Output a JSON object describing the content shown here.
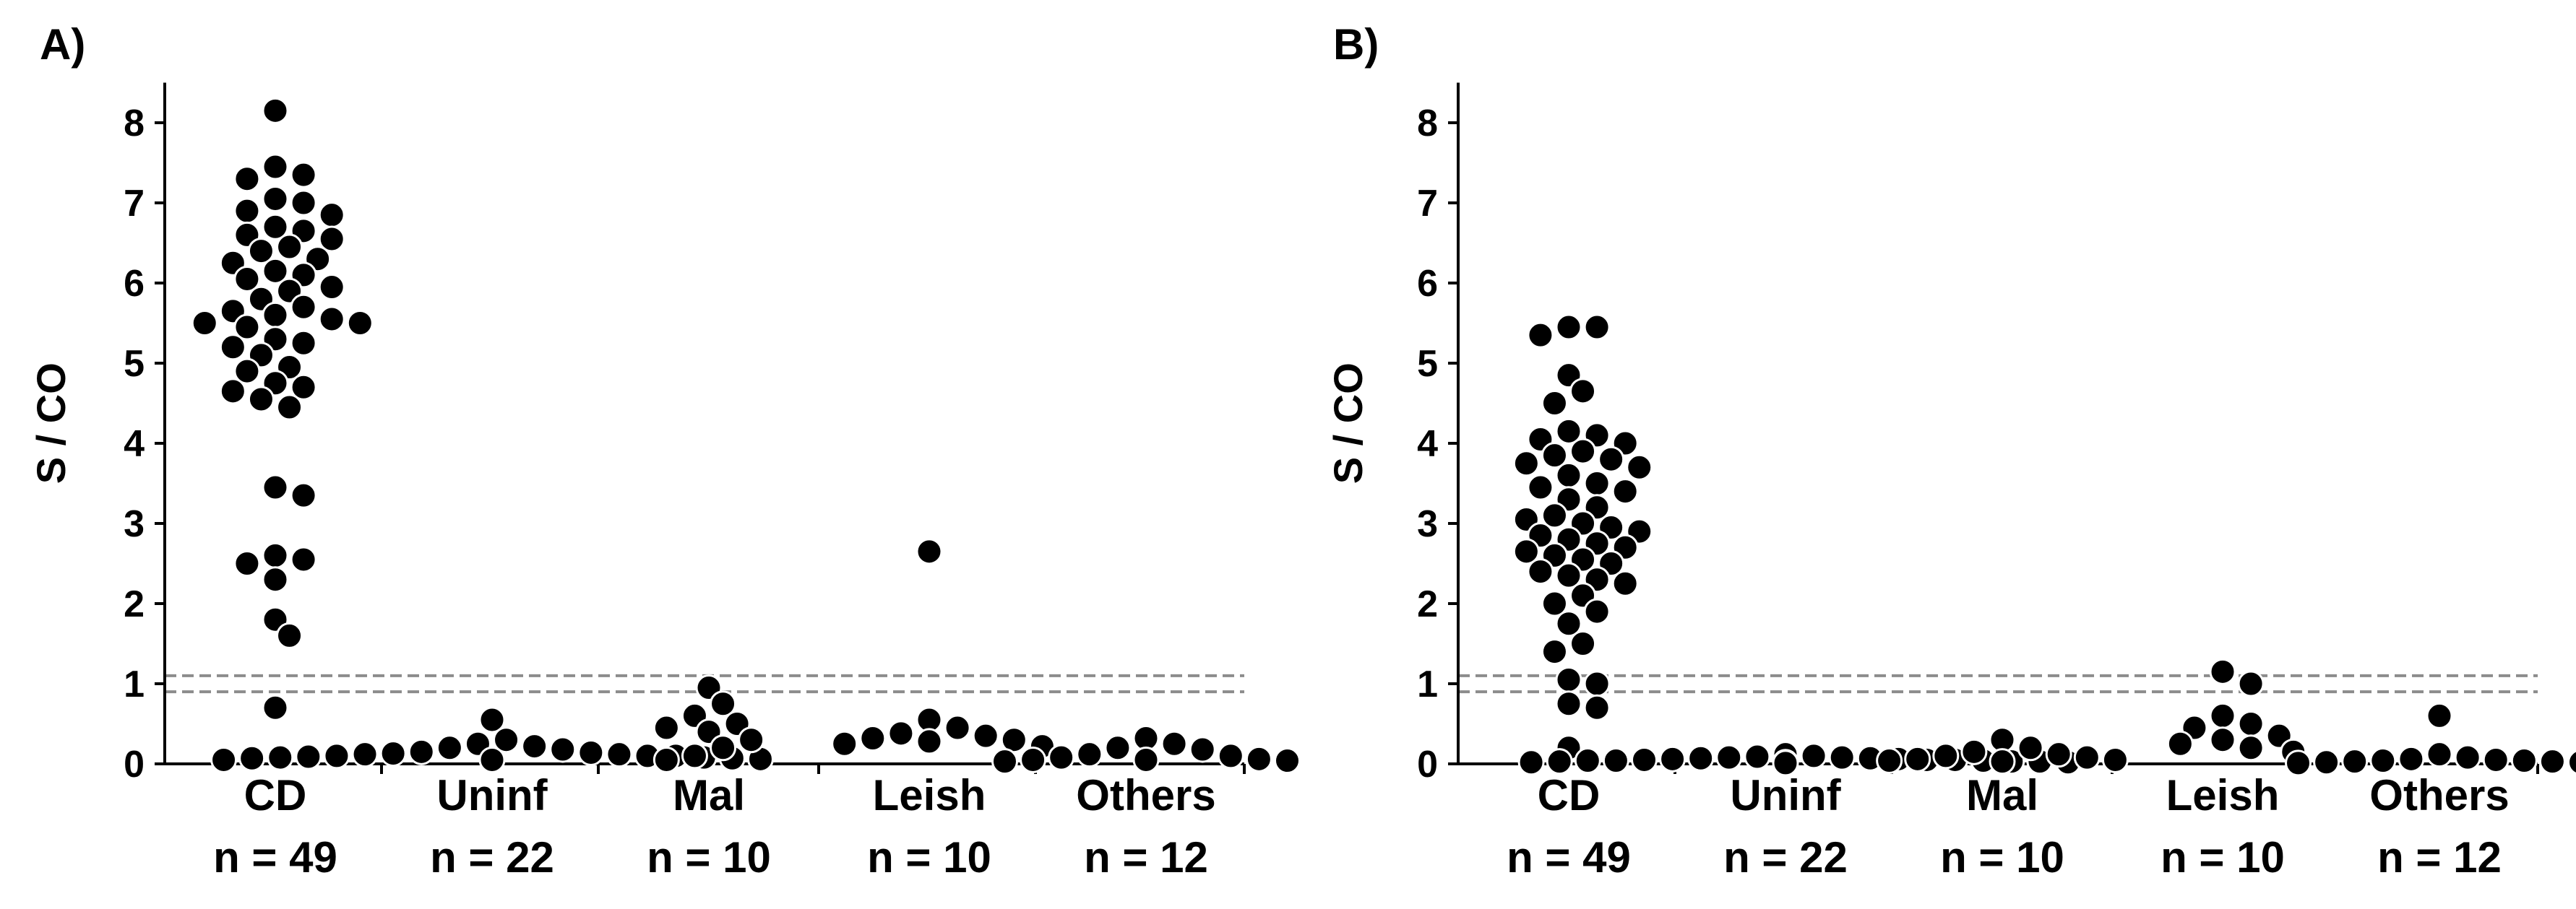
{
  "chart_data": [
    {
      "type": "scatter",
      "panel_label": "A)",
      "ylabel": "S / CO",
      "ylim": [
        0,
        8.5
      ],
      "yticks": [
        "0",
        "1",
        "2",
        "3",
        "4",
        "5",
        "6",
        "7",
        "8"
      ],
      "cutoff_lines": [
        0.9,
        1.1
      ],
      "categories": [
        {
          "name": "CD",
          "n_label": "n = 49",
          "values": [
            8.15,
            7.45,
            7.35,
            7.3,
            7.05,
            7.0,
            6.9,
            6.85,
            6.7,
            6.65,
            6.6,
            6.55,
            6.45,
            6.4,
            6.3,
            6.25,
            6.15,
            6.1,
            6.05,
            5.95,
            5.9,
            5.8,
            5.7,
            5.65,
            5.6,
            5.55,
            5.5,
            5.5,
            5.45,
            5.3,
            5.25,
            5.2,
            5.1,
            4.95,
            4.9,
            4.75,
            4.7,
            4.65,
            4.55,
            4.45,
            3.45,
            3.35,
            2.6,
            2.55,
            2.5,
            2.3,
            1.8,
            1.6,
            0.7
          ]
        },
        {
          "name": "Uninf",
          "n_label": "n = 22",
          "values": [
            0.55,
            0.3,
            0.25,
            0.22,
            0.2,
            0.18,
            0.15,
            0.14,
            0.13,
            0.12,
            0.12,
            0.1,
            0.1,
            0.1,
            0.09,
            0.08,
            0.08,
            0.07,
            0.07,
            0.06,
            0.05,
            0.05
          ]
        },
        {
          "name": "Mal",
          "n_label": "n = 10",
          "values": [
            0.95,
            0.75,
            0.6,
            0.5,
            0.45,
            0.4,
            0.3,
            0.2,
            0.1,
            0.05
          ]
        },
        {
          "name": "Leish",
          "n_label": "n = 10",
          "values": [
            2.65,
            0.55,
            0.45,
            0.38,
            0.35,
            0.32,
            0.3,
            0.28,
            0.25,
            0.22
          ]
        },
        {
          "name": "Others",
          "n_label": "n = 12",
          "values": [
            0.32,
            0.25,
            0.2,
            0.18,
            0.12,
            0.1,
            0.08,
            0.06,
            0.05,
            0.05,
            0.04,
            0.03
          ]
        }
      ]
    },
    {
      "type": "scatter",
      "panel_label": "B)",
      "ylabel": "S / CO",
      "ylim": [
        0,
        8.5
      ],
      "yticks": [
        "0",
        "1",
        "2",
        "3",
        "4",
        "5",
        "6",
        "7",
        "8"
      ],
      "cutoff_lines": [
        0.9,
        1.1
      ],
      "categories": [
        {
          "name": "CD",
          "n_label": "n = 49",
          "values": [
            5.45,
            5.45,
            5.35,
            4.85,
            4.65,
            4.5,
            4.15,
            4.1,
            4.05,
            4.0,
            3.9,
            3.85,
            3.8,
            3.75,
            3.7,
            3.6,
            3.5,
            3.45,
            3.4,
            3.3,
            3.2,
            3.1,
            3.05,
            3.0,
            2.95,
            2.9,
            2.85,
            2.8,
            2.75,
            2.7,
            2.65,
            2.6,
            2.55,
            2.5,
            2.4,
            2.35,
            2.3,
            2.25,
            2.1,
            2.0,
            1.9,
            1.75,
            1.5,
            1.4,
            1.05,
            1.0,
            0.75,
            0.7,
            0.2
          ]
        },
        {
          "name": "Uninf",
          "n_label": "n = 22",
          "values": [
            0.12,
            0.1,
            0.09,
            0.08,
            0.08,
            0.07,
            0.07,
            0.06,
            0.06,
            0.05,
            0.05,
            0.05,
            0.04,
            0.04,
            0.04,
            0.03,
            0.03,
            0.03,
            0.02,
            0.02,
            0.02,
            0.01
          ]
        },
        {
          "name": "Mal",
          "n_label": "n = 10",
          "values": [
            0.3,
            0.2,
            0.15,
            0.12,
            0.1,
            0.08,
            0.06,
            0.05,
            0.04,
            0.03
          ]
        },
        {
          "name": "Leish",
          "n_label": "n = 10",
          "values": [
            1.15,
            1.0,
            0.6,
            0.5,
            0.45,
            0.35,
            0.3,
            0.25,
            0.2,
            0.15
          ]
        },
        {
          "name": "Others",
          "n_label": "n = 12",
          "values": [
            0.6,
            0.12,
            0.08,
            0.06,
            0.05,
            0.04,
            0.04,
            0.03,
            0.03,
            0.02,
            0.02,
            0.01
          ]
        }
      ]
    }
  ],
  "colors": {
    "marker_fill": "#000000",
    "marker_stroke": "#ffffff",
    "axis": "#000000",
    "cutoff_line": "#8c8c8c"
  }
}
